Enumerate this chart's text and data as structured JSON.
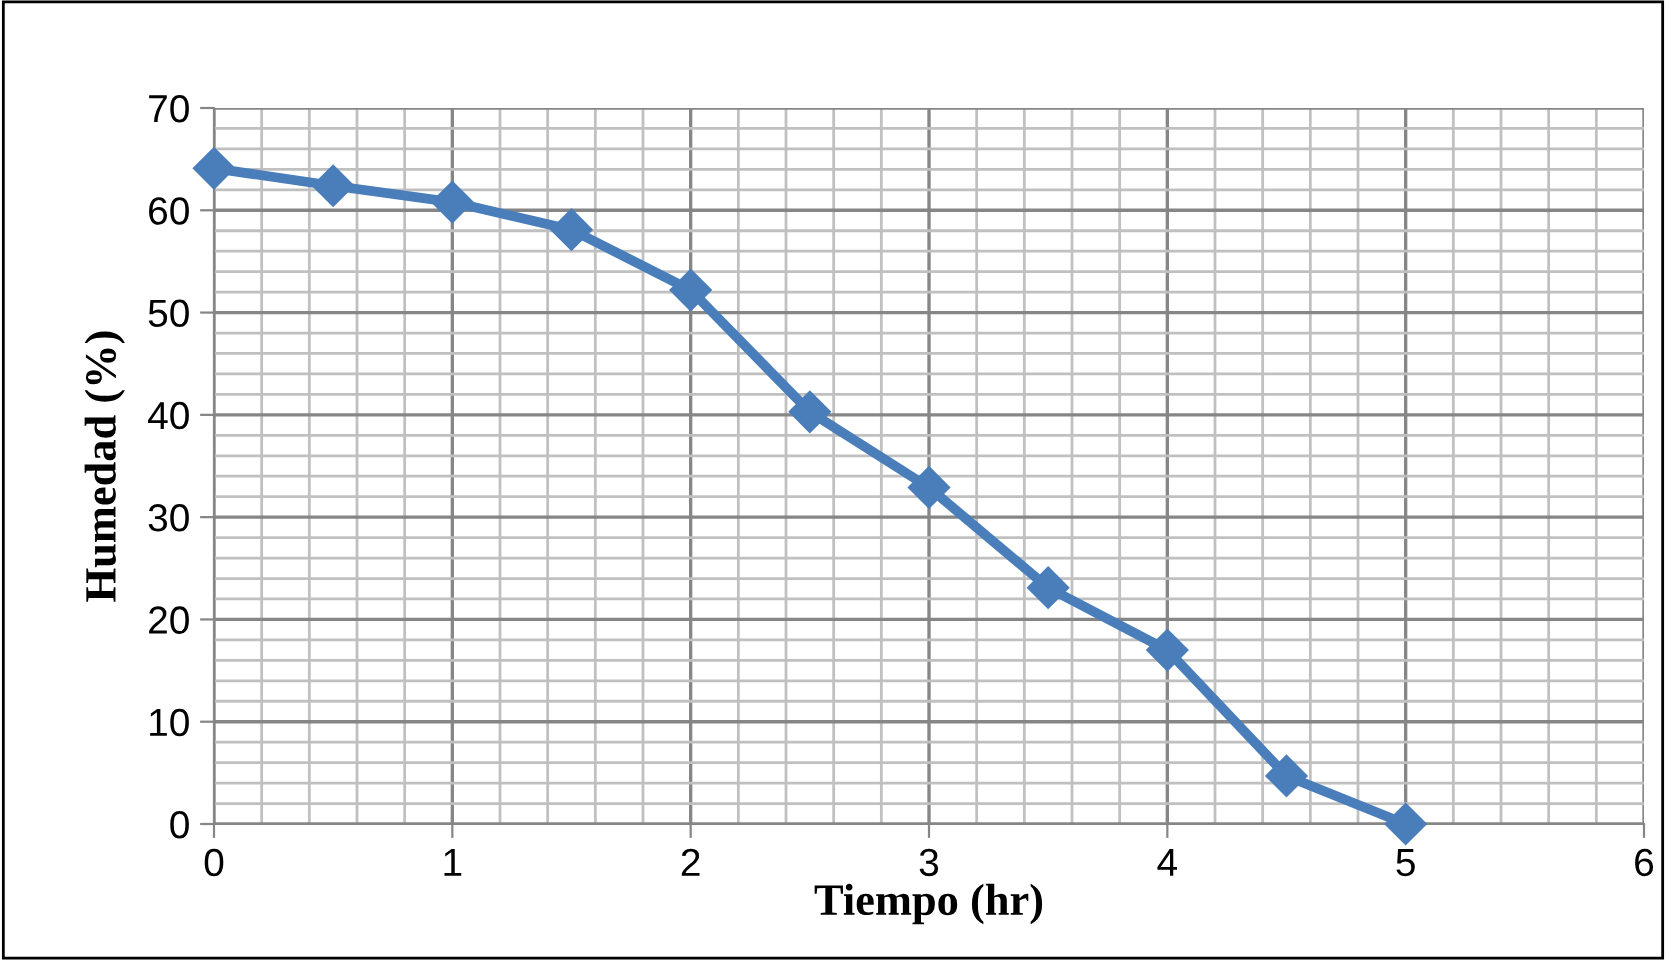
{
  "chart_data": {
    "type": "line",
    "xlabel": "Tiempo (hr)",
    "ylabel": "Humedad (%)",
    "x": [
      0,
      0.5,
      1,
      1.5,
      2,
      2.5,
      3,
      3.5,
      4,
      4.5,
      5
    ],
    "series": [
      {
        "color": "#4a7ebb",
        "values": [
          64.1,
          62.4,
          60.8,
          58.1,
          52.2,
          40.3,
          32.9,
          23.1,
          17.0,
          4.7,
          0
        ]
      }
    ],
    "xlim": [
      0,
      6
    ],
    "xticks": [
      0,
      1,
      2,
      3,
      4,
      5,
      6
    ],
    "ylim": [
      0,
      70
    ],
    "yticks": [
      0,
      10,
      20,
      30,
      40,
      50,
      60,
      70
    ],
    "grid": true,
    "legend": false,
    "marker": "diamond",
    "line_style": "solid"
  }
}
